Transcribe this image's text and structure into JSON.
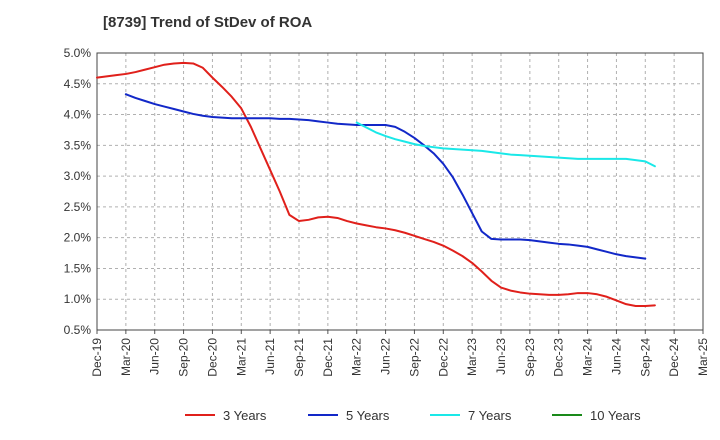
{
  "title": "[8739]  Trend of StDev of ROA",
  "chart_data": {
    "type": "line",
    "title": "[8739]  Trend of StDev of ROA",
    "xlabel": "",
    "ylabel": "",
    "x_ticks": [
      "Dec-19",
      "Mar-20",
      "Jun-20",
      "Sep-20",
      "Dec-20",
      "Mar-21",
      "Jun-21",
      "Sep-21",
      "Dec-21",
      "Mar-22",
      "Jun-22",
      "Sep-22",
      "Dec-22",
      "Mar-23",
      "Jun-23",
      "Sep-23",
      "Dec-23",
      "Mar-24",
      "Jun-24",
      "Sep-24",
      "Dec-24",
      "Mar-25"
    ],
    "y_ticks": [
      "0.5%",
      "1.0%",
      "1.5%",
      "2.0%",
      "2.5%",
      "3.0%",
      "3.5%",
      "4.0%",
      "4.5%",
      "5.0%"
    ],
    "ylim": [
      0.5,
      5.0
    ],
    "y_unit": "%",
    "grid": "dashed",
    "legend_position": "bottom",
    "series": [
      {
        "name": "3 Years",
        "color": "#e0201b",
        "points": [
          [
            "Dec-19",
            4.6
          ],
          [
            "Jan-20",
            4.62
          ],
          [
            "Feb-20",
            4.64
          ],
          [
            "Mar-20",
            4.66
          ],
          [
            "Apr-20",
            4.69
          ],
          [
            "May-20",
            4.73
          ],
          [
            "Jun-20",
            4.77
          ],
          [
            "Jul-20",
            4.81
          ],
          [
            "Aug-20",
            4.83
          ],
          [
            "Sep-20",
            4.84
          ],
          [
            "Oct-20",
            4.83
          ],
          [
            "Nov-20",
            4.76
          ],
          [
            "Dec-20",
            4.6
          ],
          [
            "Jan-21",
            4.45
          ],
          [
            "Feb-21",
            4.29
          ],
          [
            "Mar-21",
            4.1
          ],
          [
            "Apr-21",
            3.8
          ],
          [
            "May-21",
            3.45
          ],
          [
            "Jun-21",
            3.1
          ],
          [
            "Jul-21",
            2.75
          ],
          [
            "Aug-21",
            2.37
          ],
          [
            "Sep-21",
            2.27
          ],
          [
            "Oct-21",
            2.29
          ],
          [
            "Nov-21",
            2.33
          ],
          [
            "Dec-21",
            2.34
          ],
          [
            "Jan-22",
            2.32
          ],
          [
            "Feb-22",
            2.27
          ],
          [
            "Mar-22",
            2.23
          ],
          [
            "Apr-22",
            2.2
          ],
          [
            "May-22",
            2.17
          ],
          [
            "Jun-22",
            2.15
          ],
          [
            "Jul-22",
            2.12
          ],
          [
            "Aug-22",
            2.08
          ],
          [
            "Sep-22",
            2.03
          ],
          [
            "Oct-22",
            1.98
          ],
          [
            "Nov-22",
            1.93
          ],
          [
            "Dec-22",
            1.87
          ],
          [
            "Jan-23",
            1.79
          ],
          [
            "Feb-23",
            1.7
          ],
          [
            "Mar-23",
            1.59
          ],
          [
            "Apr-23",
            1.45
          ],
          [
            "May-23",
            1.3
          ],
          [
            "Jun-23",
            1.19
          ],
          [
            "Jul-23",
            1.14
          ],
          [
            "Aug-23",
            1.11
          ],
          [
            "Sep-23",
            1.09
          ],
          [
            "Oct-23",
            1.08
          ],
          [
            "Nov-23",
            1.07
          ],
          [
            "Dec-23",
            1.07
          ],
          [
            "Jan-24",
            1.08
          ],
          [
            "Feb-24",
            1.1
          ],
          [
            "Mar-24",
            1.1
          ],
          [
            "Apr-24",
            1.08
          ],
          [
            "May-24",
            1.04
          ],
          [
            "Jun-24",
            0.98
          ],
          [
            "Jul-24",
            0.92
          ],
          [
            "Aug-24",
            0.89
          ],
          [
            "Sep-24",
            0.89
          ],
          [
            "Oct-24",
            0.9
          ]
        ]
      },
      {
        "name": "5 Years",
        "color": "#1228c8",
        "points": [
          [
            "Mar-20",
            4.33
          ],
          [
            "Apr-20",
            4.27
          ],
          [
            "May-20",
            4.22
          ],
          [
            "Jun-20",
            4.17
          ],
          [
            "Jul-20",
            4.13
          ],
          [
            "Aug-20",
            4.09
          ],
          [
            "Sep-20",
            4.05
          ],
          [
            "Oct-20",
            4.01
          ],
          [
            "Nov-20",
            3.98
          ],
          [
            "Dec-20",
            3.96
          ],
          [
            "Jan-21",
            3.95
          ],
          [
            "Feb-21",
            3.94
          ],
          [
            "Mar-21",
            3.94
          ],
          [
            "Apr-21",
            3.94
          ],
          [
            "May-21",
            3.94
          ],
          [
            "Jun-21",
            3.94
          ],
          [
            "Jul-21",
            3.93
          ],
          [
            "Aug-21",
            3.93
          ],
          [
            "Sep-21",
            3.92
          ],
          [
            "Oct-21",
            3.91
          ],
          [
            "Nov-21",
            3.89
          ],
          [
            "Dec-21",
            3.87
          ],
          [
            "Jan-22",
            3.85
          ],
          [
            "Feb-22",
            3.84
          ],
          [
            "Mar-22",
            3.83
          ],
          [
            "Apr-22",
            3.83
          ],
          [
            "May-22",
            3.83
          ],
          [
            "Jun-22",
            3.83
          ],
          [
            "Jul-22",
            3.8
          ],
          [
            "Aug-22",
            3.72
          ],
          [
            "Sep-22",
            3.62
          ],
          [
            "Oct-22",
            3.5
          ],
          [
            "Nov-22",
            3.37
          ],
          [
            "Dec-22",
            3.2
          ],
          [
            "Jan-23",
            2.98
          ],
          [
            "Feb-23",
            2.7
          ],
          [
            "Mar-23",
            2.4
          ],
          [
            "Apr-23",
            2.1
          ],
          [
            "May-23",
            1.98
          ],
          [
            "Jun-23",
            1.97
          ],
          [
            "Jul-23",
            1.97
          ],
          [
            "Aug-23",
            1.97
          ],
          [
            "Sep-23",
            1.96
          ],
          [
            "Oct-23",
            1.94
          ],
          [
            "Nov-23",
            1.92
          ],
          [
            "Dec-23",
            1.9
          ],
          [
            "Jan-24",
            1.89
          ],
          [
            "Feb-24",
            1.87
          ],
          [
            "Mar-24",
            1.85
          ],
          [
            "Apr-24",
            1.81
          ],
          [
            "May-24",
            1.77
          ],
          [
            "Jun-24",
            1.73
          ],
          [
            "Jul-24",
            1.7
          ],
          [
            "Aug-24",
            1.68
          ],
          [
            "Sep-24",
            1.66
          ]
        ]
      },
      {
        "name": "7 Years",
        "color": "#1ae8e8",
        "points": [
          [
            "Mar-22",
            3.87
          ],
          [
            "Apr-22",
            3.79
          ],
          [
            "May-22",
            3.71
          ],
          [
            "Jun-22",
            3.65
          ],
          [
            "Jul-22",
            3.6
          ],
          [
            "Aug-22",
            3.56
          ],
          [
            "Sep-22",
            3.52
          ],
          [
            "Oct-22",
            3.49
          ],
          [
            "Nov-22",
            3.47
          ],
          [
            "Dec-22",
            3.45
          ],
          [
            "Jan-23",
            3.44
          ],
          [
            "Feb-23",
            3.43
          ],
          [
            "Mar-23",
            3.42
          ],
          [
            "Apr-23",
            3.41
          ],
          [
            "May-23",
            3.39
          ],
          [
            "Jun-23",
            3.37
          ],
          [
            "Jul-23",
            3.35
          ],
          [
            "Aug-23",
            3.34
          ],
          [
            "Sep-23",
            3.33
          ],
          [
            "Oct-23",
            3.32
          ],
          [
            "Nov-23",
            3.31
          ],
          [
            "Dec-23",
            3.3
          ],
          [
            "Jan-24",
            3.29
          ],
          [
            "Feb-24",
            3.28
          ],
          [
            "Mar-24",
            3.28
          ],
          [
            "Apr-24",
            3.28
          ],
          [
            "May-24",
            3.28
          ],
          [
            "Jun-24",
            3.28
          ],
          [
            "Jul-24",
            3.28
          ],
          [
            "Aug-24",
            3.26
          ],
          [
            "Sep-24",
            3.24
          ],
          [
            "Oct-24",
            3.16
          ]
        ]
      },
      {
        "name": "10 Years",
        "color": "#1a8a1a",
        "points": []
      }
    ]
  }
}
